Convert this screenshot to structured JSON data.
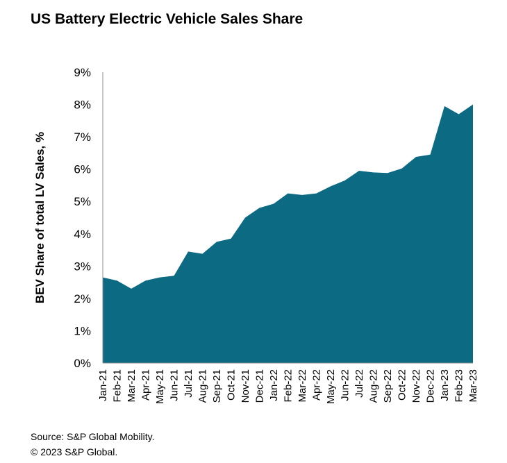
{
  "title": "US Battery Electric Vehicle Sales Share",
  "footer": {
    "source": "Source: S&P Global Mobility.",
    "copyright": "© 2023 S&P Global."
  },
  "colors": {
    "area_fill": "#0c6a83",
    "axis": "#8c8c8c"
  },
  "chart_data": {
    "type": "area",
    "title": "US Battery Electric Vehicle Sales Share",
    "xlabel": "",
    "ylabel": "BEV Share of total LV Sales, %",
    "ylim": [
      0,
      9
    ],
    "yticks": [
      0,
      1,
      2,
      3,
      4,
      5,
      6,
      7,
      8,
      9
    ],
    "ytick_labels": [
      "0%",
      "1%",
      "2%",
      "3%",
      "4%",
      "5%",
      "6%",
      "7%",
      "8%",
      "9%"
    ],
    "grid": false,
    "legend": "none",
    "categories": [
      "Jan-21",
      "Feb-21",
      "Mar-21",
      "Apr-21",
      "May-21",
      "Jun-21",
      "Jul-21",
      "Aug-21",
      "Sep-21",
      "Oct-21",
      "Nov-21",
      "Dec-21",
      "Jan-22",
      "Feb-22",
      "Mar-22",
      "Apr-22",
      "May-22",
      "Jun-22",
      "Jul-22",
      "Aug-22",
      "Sep-22",
      "Oct-22",
      "Nov-22",
      "Dec-22",
      "Jan-23",
      "Feb-23",
      "Mar-23"
    ],
    "values": [
      2.65,
      2.55,
      2.3,
      2.55,
      2.65,
      2.7,
      3.45,
      3.38,
      3.75,
      3.85,
      4.5,
      4.8,
      4.93,
      5.25,
      5.2,
      5.25,
      5.47,
      5.65,
      5.95,
      5.9,
      5.88,
      6.02,
      6.38,
      6.45,
      7.95,
      7.7,
      8.0
    ]
  }
}
